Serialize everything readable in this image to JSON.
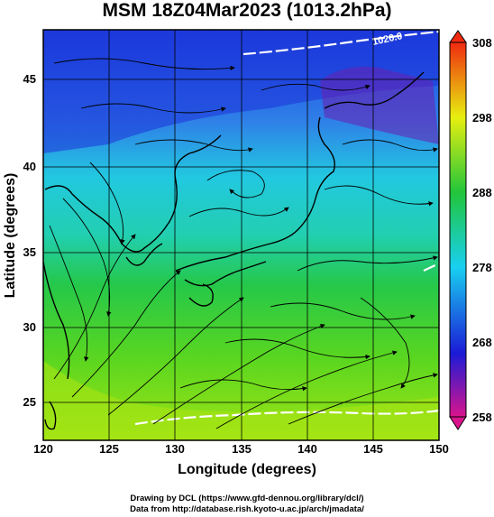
{
  "title": "MSM 18Z04Mar2023 (1013.2hPa)",
  "xlabel": "Longitude (degrees)",
  "ylabel": "Latitude  (degrees)",
  "credits": [
    "Drawing by DCL (https://www.gfd-dennou.org/library/dcl/)",
    "Data from http://database.rish.kyoto-u.ac.jp/arch/jmadata/"
  ],
  "x_ticks": [
    "120",
    "125",
    "130",
    "135",
    "140",
    "145",
    "150"
  ],
  "y_ticks": [
    "45",
    "40",
    "35",
    "30",
    "25"
  ],
  "colorbar_ticks": [
    "308",
    "298",
    "288",
    "278",
    "268",
    "258"
  ],
  "contour_label": "1020.0",
  "map": {
    "lon_range": [
      120,
      150
    ],
    "lat_range": [
      22.4,
      47.6
    ],
    "gridlines": true,
    "colormap": [
      "#d9148d",
      "#1b1bd6",
      "#18d0f0",
      "#22c53a",
      "#e7ef10",
      "#f02a10"
    ],
    "colorbar_range": [
      258,
      308
    ]
  }
}
